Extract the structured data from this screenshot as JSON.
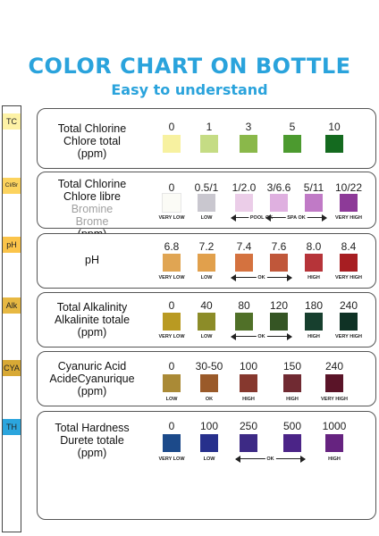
{
  "header": {
    "title": "COLOR CHART ON BOTTLE",
    "subtitle": "Easy to understand"
  },
  "strip": {
    "pads": [
      {
        "label": "TC",
        "color": "#fdf2a6"
      },
      {
        "label": "Cl/Br",
        "color": "#fcd35e"
      },
      {
        "label": "pH",
        "color": "#fbc44a"
      },
      {
        "label": "Alk",
        "color": "#e7b842"
      },
      {
        "label": "CYA",
        "color": "#d8a935"
      },
      {
        "label": "TH",
        "color": "#2ba5dd"
      }
    ]
  },
  "rows": [
    {
      "id": "tc",
      "label_lines": [
        "Total Chlorine",
        "Chlore total",
        "(ppm)"
      ],
      "gray_lines": [],
      "values": [
        "0",
        "1",
        "3",
        "5",
        "10"
      ],
      "colors": [
        "#f7f1a0",
        "#c5dc84",
        "#8ab84a",
        "#4c9a2f",
        "#146a1f"
      ],
      "tags": [],
      "arrows": []
    },
    {
      "id": "clbr",
      "label_lines": [
        "Total Chlorine",
        "Chlore libre"
      ],
      "gray_lines": [
        "Bromine",
        "Brome"
      ],
      "unit_line": "(ppm)",
      "values": [
        "0",
        "0.5/1",
        "1/2.0",
        "3/6.6",
        "5/11",
        "10/22"
      ],
      "colors": [
        "#fbfbf6",
        "#c9c7cf",
        "#ebcde8",
        "#dfb0e0",
        "#c07ac6",
        "#8d3a98"
      ],
      "tags": [
        "VERY LOW",
        "LOW",
        "",
        "",
        "",
        "VERY HIGH"
      ],
      "arrows": [
        {
          "text": "POOL OK",
          "from": 2,
          "to": 3
        },
        {
          "text": "SPA OK",
          "from": 3,
          "to": 4
        }
      ]
    },
    {
      "id": "ph",
      "label_lines": [
        "pH"
      ],
      "gray_lines": [],
      "values": [
        "6.8",
        "7.2",
        "7.4",
        "7.6",
        "8.0",
        "8.4"
      ],
      "colors": [
        "#e0a553",
        "#e1a04c",
        "#d4723f",
        "#c0573a",
        "#b63439",
        "#a71e22"
      ],
      "tags": [
        "VERY LOW",
        "LOW",
        "",
        "",
        "HIGH",
        "VERY HIGH"
      ],
      "arrows": [
        {
          "text": "OK",
          "from": 2,
          "to": 3
        }
      ]
    },
    {
      "id": "alk",
      "label_lines": [
        "Total Alkalinity",
        "Alkalinite totale",
        "(ppm)"
      ],
      "gray_lines": [],
      "values": [
        "0",
        "40",
        "80",
        "120",
        "180",
        "240"
      ],
      "colors": [
        "#b99a22",
        "#8c8c28",
        "#507028",
        "#355524",
        "#173f2e",
        "#0f3225"
      ],
      "tags": [
        "VERY LOW",
        "LOW",
        "",
        "",
        "HIGH",
        "VERY HIGH"
      ],
      "arrows": [
        {
          "text": "OK",
          "from": 2,
          "to": 3
        }
      ]
    },
    {
      "id": "cya",
      "label_lines": [
        "Cyanuric Acid",
        "AcideCyanurique",
        "(ppm)"
      ],
      "gray_lines": [],
      "values": [
        "0",
        "30-50",
        "100",
        "150",
        "240"
      ],
      "colors": [
        "#aa8a36",
        "#9a5a2a",
        "#86382e",
        "#702a32",
        "#5a1428"
      ],
      "tags": [
        "LOW",
        "OK",
        "HIGH",
        "HIGH",
        "VERY HIGH"
      ],
      "arrows": []
    },
    {
      "id": "th",
      "label_lines": [
        "Total Hardness",
        "Durete totale",
        "(ppm)"
      ],
      "gray_lines": [],
      "values": [
        "0",
        "100",
        "250",
        "500",
        "1000"
      ],
      "colors": [
        "#1c4a8a",
        "#27308c",
        "#3d2a85",
        "#4b2487",
        "#662380"
      ],
      "tags": [
        "VERY LOW",
        "LOW",
        "",
        "",
        "HIGH"
      ],
      "arrows": [
        {
          "text": "OK",
          "from": 2,
          "to": 3
        }
      ]
    }
  ]
}
